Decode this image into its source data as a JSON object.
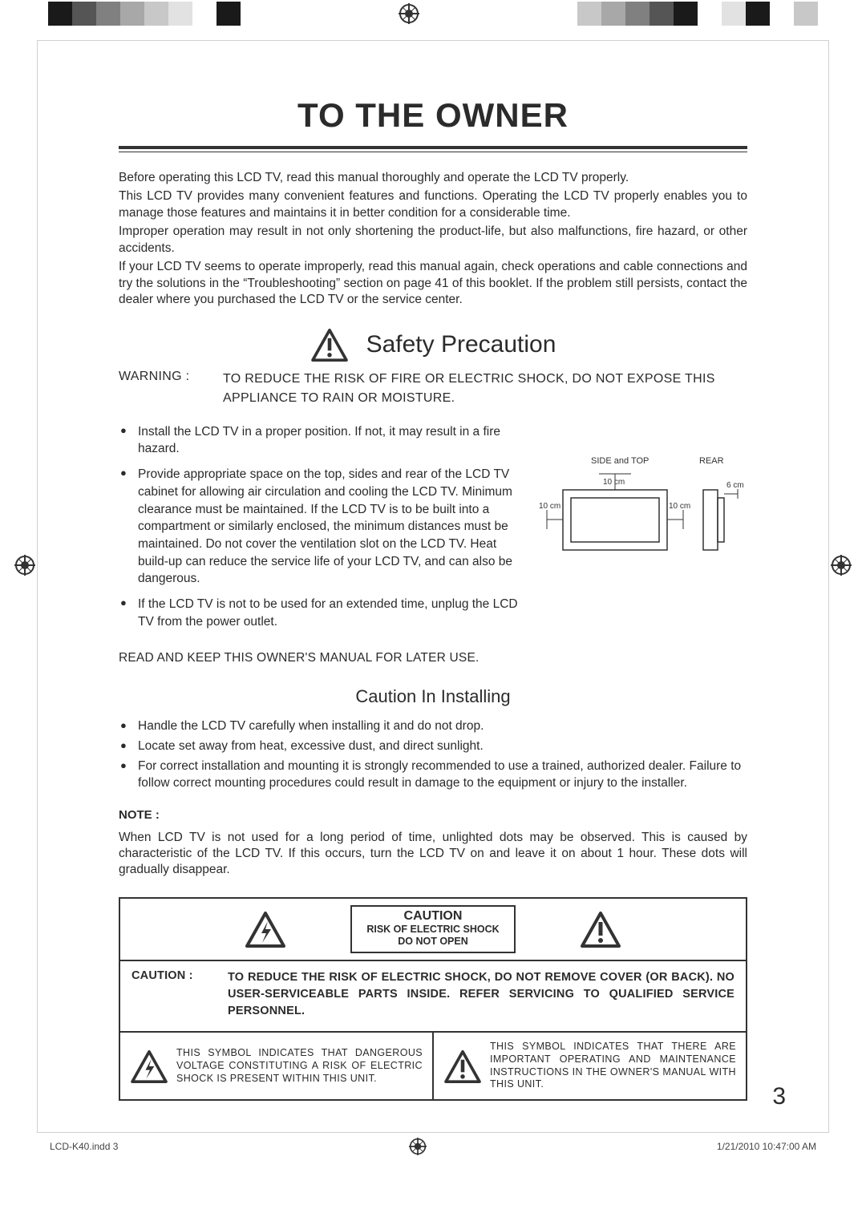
{
  "printMarks": {
    "leftBars": [
      "#1a1a1a",
      "#555555",
      "#808080",
      "#a8a8a8",
      "#c8c8c8",
      "#e2e2e2",
      "#ffffff",
      "#1a1a1a",
      "#ffffff"
    ],
    "rightBars": [
      "#ffffff",
      "#c8c8c8",
      "#a8a8a8",
      "#808080",
      "#555555",
      "#1a1a1a",
      "#ffffff",
      "#e2e2e2",
      "#1a1a1a",
      "#ffffff",
      "#c8c8c8"
    ]
  },
  "title": "TO THE OWNER",
  "intro": [
    "Before operating this LCD TV, read this manual thoroughly and operate the LCD TV properly.",
    "This LCD TV provides many convenient features and functions. Operating the LCD TV properly enables you to manage those features and maintains it in better condition for a considerable time.",
    "Improper operation may result in not only shortening the product-life, but also malfunctions, fire hazard, or other accidents.",
    "If your LCD TV seems to operate improperly, read this manual again, check operations and cable connections and try the solutions in the “Troubleshooting” section on page 41 of this booklet. If the problem still persists, contact the dealer where you purchased the LCD TV or the service center."
  ],
  "safety": {
    "heading": "Safety Precaution",
    "warningLabel": "WARNING :",
    "warningText": "TO REDUCE THE RISK OF FIRE OR ELECTRIC SHOCK, DO NOT EXPOSE THIS APPLIANCE TO RAIN OR MOISTURE.",
    "bullets": [
      "Install the LCD TV in a proper position. If not, it may result in a fire hazard.",
      "Provide appropriate space on the top, sides and rear of the LCD TV cabinet for allowing air circulation and cooling the LCD TV. Minimum clearance must be maintained. If the LCD TV is to be built into a compartment or similarly enclosed, the minimum distances must be maintained. Do not cover the ventilation slot on the LCD TV. Heat build-up can reduce the service life of your LCD TV, and can also be dangerous.",
      "If the LCD TV is not to be used for an extended time, unplug the LCD TV from the power outlet."
    ],
    "readKeep": "READ AND KEEP THIS OWNER'S MANUAL FOR LATER USE.",
    "clearanceDiagram": {
      "labelSideTop": "SIDE and TOP",
      "labelRear": "REAR",
      "top": "10 cm",
      "left": "10 cm",
      "right": "10 cm",
      "rear": "6 cm"
    }
  },
  "installing": {
    "heading": "Caution In Installing",
    "bullets": [
      "Handle the LCD TV carefully when installing it and do not drop.",
      "Locate set away from heat, excessive dust, and direct sunlight.",
      "For correct installation and mounting it is strongly recommended to use a trained, authorized dealer. Failure to follow correct mounting procedures could result in damage to the equipment or injury to the installer."
    ],
    "noteLabel": "NOTE :",
    "noteText": "When LCD TV is not used for a long period of time, unlighted dots may be observed. This is caused by characteristic of the LCD TV. If this occurs, turn the LCD TV on and leave it on about 1 hour. These dots will gradually disappear."
  },
  "cautionBox": {
    "caution": "CAUTION",
    "risk1": "RISK OF ELECTRIC SHOCK",
    "risk2": "DO NOT OPEN",
    "midLabel": "CAUTION :",
    "midText": "TO REDUCE THE RISK OF ELECTRIC SHOCK, DO NOT REMOVE COVER (OR BACK).  NO USER-SERVICEABLE PARTS INSIDE.  REFER SERVICING TO QUALIFIED SERVICE PERSONNEL.",
    "leftDesc": "THIS SYMBOL INDICATES THAT DANGEROUS VOLTAGE CONSTITUTING A RISK OF ELECTRIC SHOCK IS PRESENT WITHIN THIS UNIT.",
    "rightDesc": "THIS SYMBOL INDICATES THAT THERE ARE IMPORTANT OPERATING AND MAINTENANCE INSTRUCTIONS IN THE OWNER'S MANUAL WITH THIS UNIT."
  },
  "pageNumber": "3",
  "footer": {
    "left": "LCD-K40.indd   3",
    "right": "1/21/2010   10:47:00 AM"
  },
  "colors": {
    "text": "#2b2b2b",
    "rule": "#333333",
    "frame": "#d0d0d0"
  }
}
